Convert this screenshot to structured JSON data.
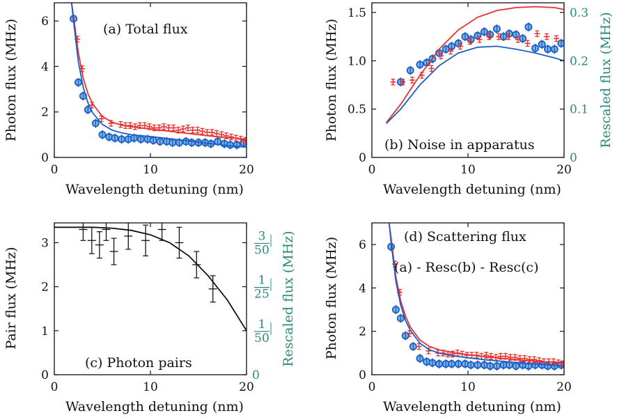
{
  "colors": {
    "red": "#e8302c",
    "blue": "#1a5fc4",
    "blue_fill": "#7fb0e8",
    "black": "#111111",
    "teal": "#2a8a7a"
  },
  "chart_data": [
    {
      "type": "scatter",
      "title": "(a) Total flux",
      "xlabel": "Wavelength detuning (nm)",
      "ylabel": "Photon flux (MHz)",
      "xlim": [
        0,
        20
      ],
      "ylim": [
        0,
        6.8
      ],
      "xticks": [
        "0",
        "10",
        "20"
      ],
      "yticks": [
        "0",
        "2",
        "4",
        "6"
      ],
      "series": [
        {
          "marker": "circle",
          "color": "blue",
          "x": [
            2,
            2.5,
            3,
            3.5,
            4.3,
            5,
            5.7,
            6.3,
            7,
            7.7,
            8.3,
            9,
            9.7,
            10.3,
            11,
            11.7,
            12.3,
            13,
            13.7,
            14.3,
            15,
            15.7,
            16.3,
            17,
            17.7,
            18.3,
            19,
            19.7
          ],
          "y": [
            6.1,
            3.3,
            2.7,
            2.1,
            1.5,
            1.0,
            0.9,
            0.85,
            0.8,
            0.8,
            0.85,
            0.8,
            0.8,
            0.75,
            0.7,
            0.7,
            0.65,
            0.65,
            0.7,
            0.65,
            0.65,
            0.65,
            0.6,
            0.7,
            0.6,
            0.55,
            0.55,
            0.65
          ]
        },
        {
          "marker": "cross",
          "color": "red",
          "x": [
            2.4,
            2.9,
            3.9,
            4.9,
            5.9,
            6.9,
            7.4,
            7.9,
            8.4,
            8.9,
            9.4,
            9.9,
            10.4,
            10.9,
            11.4,
            11.9,
            12.4,
            12.9,
            13.4,
            13.9,
            14.4,
            14.9,
            15.4,
            15.9,
            16.4,
            16.9,
            17.4,
            17.9,
            18.4,
            18.9,
            19.4,
            19.9
          ],
          "y": [
            5.2,
            3.9,
            2.3,
            1.7,
            1.5,
            1.45,
            1.4,
            1.4,
            1.35,
            1.4,
            1.4,
            1.35,
            1.3,
            1.3,
            1.35,
            1.3,
            1.3,
            1.2,
            1.25,
            1.3,
            1.2,
            1.2,
            1.15,
            1.1,
            1.1,
            1.05,
            1.0,
            0.95,
            0.9,
            0.85,
            0.8,
            0.75
          ]
        },
        {
          "marker": "line",
          "color": "red",
          "x": [
            1.8,
            2,
            2.5,
            3,
            3.5,
            4,
            5,
            6,
            7,
            8,
            10,
            12,
            14,
            16,
            18,
            20
          ],
          "y": [
            6.8,
            6.2,
            4.6,
            3.5,
            2.8,
            2.35,
            1.8,
            1.55,
            1.42,
            1.35,
            1.25,
            1.15,
            1.05,
            0.95,
            0.87,
            0.8
          ]
        },
        {
          "marker": "line",
          "color": "blue",
          "x": [
            1.8,
            2,
            2.5,
            3,
            3.5,
            4,
            5,
            6,
            7,
            8,
            10,
            12,
            14,
            16,
            18,
            20
          ],
          "y": [
            6.8,
            6.0,
            4.2,
            3.1,
            2.4,
            1.95,
            1.45,
            1.2,
            1.08,
            1.0,
            0.92,
            0.82,
            0.72,
            0.62,
            0.52,
            0.45
          ]
        }
      ]
    },
    {
      "type": "scatter",
      "title": "(b) Noise in apparatus",
      "xlabel": "Wavelength detuning (nm)",
      "ylabel": "Photon flux (MHz)",
      "ylabel_right": "Rescaled flux (MHz)",
      "xlim": [
        0,
        20
      ],
      "ylim": [
        0,
        1.6
      ],
      "xticks": [
        "0",
        "10",
        "20"
      ],
      "yticks": [
        "0",
        "0.5",
        "1.0",
        "1.5"
      ],
      "yticks_right": [
        "0",
        "0.1",
        "0.2",
        "0.3"
      ],
      "series": [
        {
          "marker": "circle",
          "color": "blue",
          "x": [
            3,
            4,
            5,
            5.7,
            6.3,
            7,
            7.7,
            8.3,
            9,
            9.7,
            10.3,
            11,
            11.7,
            12.3,
            13,
            13.7,
            14.3,
            15,
            15.7,
            16.3,
            17,
            17.7,
            18.3,
            19,
            19.7
          ],
          "y": [
            0.78,
            0.9,
            0.96,
            0.98,
            1.02,
            1.08,
            1.12,
            1.15,
            1.18,
            1.25,
            1.22,
            1.26,
            1.3,
            1.27,
            1.33,
            1.25,
            1.28,
            1.27,
            1.23,
            1.35,
            1.13,
            1.17,
            1.12,
            1.12,
            1.18
          ]
        },
        {
          "marker": "cross",
          "color": "red",
          "x": [
            2.2,
            3.2,
            4.2,
            5.2,
            6.2,
            7.2,
            8.2,
            9.2,
            10.2,
            11.2,
            12.2,
            13.2,
            14.2,
            15.2,
            16.2,
            17.2,
            18.2,
            19.2
          ],
          "y": [
            0.78,
            0.78,
            0.8,
            0.85,
            0.92,
            1.05,
            1.1,
            1.15,
            1.2,
            1.22,
            1.25,
            1.25,
            1.25,
            1.22,
            1.18,
            1.28,
            1.25,
            1.23
          ]
        },
        {
          "marker": "line",
          "color": "red",
          "x": [
            1.5,
            3,
            5,
            7,
            9,
            11,
            13,
            15,
            17,
            19,
            20
          ],
          "y": [
            0.36,
            0.55,
            0.85,
            1.12,
            1.32,
            1.45,
            1.52,
            1.55,
            1.56,
            1.55,
            1.53
          ]
        },
        {
          "marker": "line",
          "color": "blue",
          "x": [
            1.5,
            3,
            5,
            7,
            9,
            11,
            13,
            15,
            17,
            19,
            20
          ],
          "y": [
            0.35,
            0.5,
            0.75,
            0.95,
            1.08,
            1.14,
            1.15,
            1.12,
            1.08,
            1.03,
            1.0
          ]
        }
      ]
    },
    {
      "type": "scatter",
      "title": "(c) Photon pairs",
      "xlabel": "Wavelength detuning (nm)",
      "ylabel": "Pair flux (MHz)",
      "ylabel_right": "Rescaled flux (MHz)",
      "xlim": [
        0,
        20
      ],
      "ylim": [
        0,
        3.45
      ],
      "xticks": [
        "0",
        "10",
        "20"
      ],
      "yticks": [
        "0",
        "1",
        "2",
        "3"
      ],
      "yticks_right": [
        {
          "num": "",
          "den": "",
          "whole": "0"
        },
        {
          "num": "1",
          "den": "50",
          "whole": ""
        },
        {
          "num": "1",
          "den": "25",
          "whole": ""
        },
        {
          "num": "3",
          "den": "50",
          "whole": ""
        }
      ],
      "series": [
        {
          "marker": "errorbar",
          "color": "black",
          "x": [
            3.0,
            3.9,
            4.7,
            5.4,
            6.2,
            7.7,
            9.5,
            11.2,
            13.0,
            14.8,
            16.5
          ],
          "y": [
            3.3,
            3.05,
            2.95,
            3.3,
            2.8,
            3.15,
            3.05,
            3.3,
            3.0,
            2.5,
            1.95
          ],
          "yerr": [
            0.25,
            0.3,
            0.3,
            0.25,
            0.3,
            0.3,
            0.35,
            0.25,
            0.35,
            0.3,
            0.3
          ]
        },
        {
          "marker": "line",
          "color": "black",
          "x": [
            0,
            2,
            4,
            6,
            8,
            10,
            12,
            14,
            16,
            18,
            20
          ],
          "y": [
            3.35,
            3.35,
            3.35,
            3.33,
            3.28,
            3.18,
            3.0,
            2.7,
            2.25,
            1.7,
            1.0
          ]
        }
      ]
    },
    {
      "type": "scatter",
      "title": "(d) Scattering flux",
      "subtitle": "(a) - Resc(b) - Resc(c)",
      "xlabel": "Wavelength detuning (nm)",
      "ylabel": "Photon flux (MHz)",
      "xlim": [
        0,
        20
      ],
      "ylim": [
        0,
        7
      ],
      "xticks": [
        "0",
        "10",
        "20"
      ],
      "yticks": [
        "0",
        "2",
        "4",
        "6"
      ],
      "series": [
        {
          "marker": "circle",
          "color": "blue",
          "x": [
            2,
            2.5,
            3,
            3.5,
            4.3,
            5,
            5.7,
            6.3,
            7,
            7.7,
            8.3,
            9,
            9.7,
            10.3,
            11,
            11.7,
            12.3,
            13,
            13.7,
            14.3,
            15,
            15.7,
            16.3,
            17,
            17.7,
            18.3,
            19,
            19.7
          ],
          "y": [
            5.9,
            3.0,
            2.6,
            1.8,
            1.3,
            0.75,
            0.6,
            0.55,
            0.5,
            0.5,
            0.5,
            0.5,
            0.5,
            0.45,
            0.45,
            0.45,
            0.4,
            0.4,
            0.45,
            0.45,
            0.4,
            0.45,
            0.4,
            0.45,
            0.45,
            0.4,
            0.4,
            0.45
          ]
        },
        {
          "marker": "cross",
          "color": "red",
          "x": [
            2.4,
            2.9,
            3.9,
            4.9,
            5.9,
            6.9,
            7.4,
            7.9,
            8.4,
            8.9,
            9.4,
            9.9,
            10.4,
            10.9,
            11.4,
            11.9,
            12.4,
            12.9,
            13.4,
            13.9,
            14.4,
            14.9,
            15.4,
            15.9,
            16.4,
            16.9,
            17.4,
            17.9,
            18.4,
            18.9,
            19.4,
            19.9
          ],
          "y": [
            5.1,
            3.8,
            1.9,
            1.3,
            1.1,
            1.0,
            1.0,
            0.95,
            0.95,
            1.0,
            0.95,
            0.9,
            0.9,
            0.9,
            0.85,
            0.9,
            0.85,
            0.8,
            0.85,
            0.85,
            0.8,
            0.8,
            0.75,
            0.75,
            0.7,
            0.7,
            0.65,
            0.6,
            0.6,
            0.6,
            0.55,
            0.5
          ]
        },
        {
          "marker": "line",
          "color": "red",
          "x": [
            1.8,
            2,
            2.5,
            3,
            3.5,
            4,
            5,
            6,
            7,
            8,
            10,
            12,
            14,
            16,
            18,
            20
          ],
          "y": [
            7.0,
            6.3,
            4.5,
            3.4,
            2.7,
            2.2,
            1.6,
            1.3,
            1.15,
            1.05,
            0.92,
            0.82,
            0.74,
            0.66,
            0.6,
            0.55
          ]
        },
        {
          "marker": "line",
          "color": "blue",
          "x": [
            1.8,
            2,
            2.5,
            3,
            3.5,
            4,
            5,
            6,
            7,
            8,
            10,
            12,
            14,
            16,
            18,
            20
          ],
          "y": [
            7.0,
            6.1,
            4.3,
            3.2,
            2.5,
            2.05,
            1.45,
            1.15,
            1.0,
            0.9,
            0.78,
            0.68,
            0.6,
            0.52,
            0.46,
            0.4
          ]
        }
      ]
    }
  ]
}
